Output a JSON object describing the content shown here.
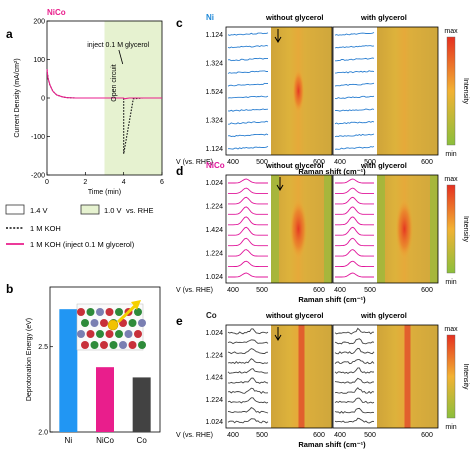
{
  "panel_a": {
    "letter": "a",
    "tag": "NiCo",
    "ylabel": "Current Density (mA/cm²)",
    "xlabel": "Time (min)",
    "yticks": [
      "200",
      "100",
      "0",
      "-100",
      "-200"
    ],
    "xticks": [
      "0",
      "2",
      "4",
      "6"
    ],
    "annot_inject": "inject 0.1 M glycerol",
    "annot_open": "Open circuit",
    "legend_14v": "1.4 V",
    "legend_10v": "1.0 V",
    "legend_vsrhe": "vs. RHE",
    "legend_koh": "1 M KOH",
    "legend_koh_gly": "1 M KOH (inject 0.1 M glycerol)"
  },
  "panel_b": {
    "letter": "b",
    "ylabel": "Deprotonation Energy (eV)",
    "yticks": [
      "2.5",
      "2.0"
    ]
  },
  "panels_right": [
    {
      "letter": "c",
      "sample": "Ni",
      "sample_color": "#1e88d8",
      "trace_color": "#2b7fd1",
      "left_title": "without glycerol",
      "right_title": "with glycerol",
      "yticks": [
        "1.124",
        "1.324",
        "1.524",
        "1.324",
        "1.124"
      ],
      "vlabel": "V (vs. RHE)",
      "xlabel": "Raman shift (cm⁻¹)",
      "xticks": [
        "400",
        "500",
        "600",
        "400",
        "500",
        "600"
      ],
      "cbar_max": "max",
      "cbar_min": "min",
      "cbar_label": "Intensity"
    },
    {
      "letter": "d",
      "sample": "NiCo",
      "sample_color": "#e0169a",
      "trace_color": "#e0169a",
      "left_title": "without glycerol",
      "right_title": "with glycerol",
      "yticks": [
        "1.024",
        "1.224",
        "1.424",
        "1.224",
        "1.024"
      ],
      "vlabel": "V (vs. RHE)",
      "xlabel": "Raman shift (cm⁻¹)",
      "xticks": [
        "400",
        "500",
        "600",
        "400",
        "500",
        "600"
      ],
      "cbar_max": "max",
      "cbar_min": "min",
      "cbar_label": "Intensity"
    },
    {
      "letter": "e",
      "sample": "Co",
      "sample_color": "#222222",
      "trace_color": "#444444",
      "left_title": "without glycerol",
      "right_title": "with glycerol",
      "yticks": [
        "1.024",
        "1.224",
        "1.424",
        "1.224",
        "1.024"
      ],
      "vlabel": "V (vs. RHE)",
      "xlabel": "Raman shift (cm⁻¹)",
      "xticks": [
        "400",
        "500",
        "600",
        "400",
        "500",
        "600"
      ],
      "cbar_max": "max",
      "cbar_min": "min",
      "cbar_label": "Intensity"
    }
  ],
  "colors": {
    "ni": "#2196f3",
    "nico": "#e91e8c",
    "co": "#424242",
    "shade": "#e6f2d0",
    "map_low": "#8bbf3c",
    "map_mid": "#f2b233",
    "map_high": "#e53020"
  },
  "chart_data": [
    {
      "type": "line",
      "xlabel": "Time (min)",
      "ylabel": "Current Density (mA/cm²)",
      "xlim": [
        0,
        6
      ],
      "ylim": [
        -200,
        200
      ],
      "series": [
        {
          "name": "1 M KOH",
          "x": [
            0,
            0.05,
            0.15,
            0.3,
            0.5,
            0.8,
            1.0,
            1.5,
            2.0,
            2.99,
            3.01,
            3.5,
            3.99,
            4.0,
            4.0,
            4.5,
            5.0,
            6.0
          ],
          "y": [
            75,
            52,
            34,
            18,
            8,
            3,
            1,
            0,
            0,
            0,
            0,
            0,
            0,
            0,
            -145,
            -2,
            0,
            0
          ]
        },
        {
          "name": "1 M KOH (inject 0.1 M glycerol)",
          "x": [
            0,
            0.05,
            0.15,
            0.3,
            0.5,
            0.8,
            1.0,
            1.5,
            2.0,
            2.99,
            3.01,
            3.5,
            3.99,
            4.05,
            4.15,
            4.3,
            5.0,
            6.0
          ],
          "y": [
            75,
            52,
            34,
            18,
            8,
            3,
            1,
            0,
            0,
            0,
            0,
            0,
            0,
            -2,
            -1,
            0,
            0,
            0
          ]
        }
      ]
    },
    {
      "type": "bar",
      "ylabel": "Deprotonation Energy (eV)",
      "categories": [
        "Ni",
        "NiCo",
        "Co"
      ],
      "values": [
        2.72,
        2.38,
        2.32
      ],
      "ylim": [
        2.0,
        2.85
      ]
    }
  ]
}
